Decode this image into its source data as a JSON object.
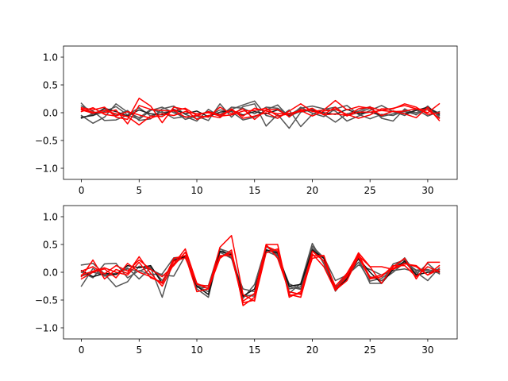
{
  "chart_data": [
    {
      "type": "line",
      "title": "",
      "xlabel": "",
      "ylabel": "",
      "xlim": [
        -1.55,
        32.55
      ],
      "ylim": [
        -1.2,
        1.2
      ],
      "xticks": [
        0,
        5,
        10,
        15,
        20,
        25,
        30
      ],
      "yticks": [
        -1.0,
        -0.5,
        0.0,
        0.5,
        1.0
      ],
      "ytick_labels": [
        "−1.0",
        "−0.5",
        "0.0",
        "0.5",
        "1.0"
      ],
      "grid": false,
      "series": [
        {
          "color": "#555555",
          "values": [
            0.17,
            -0.05,
            0.02,
            0.11,
            -0.04,
            -0.12,
            0.04,
            0.1,
            0.0,
            -0.08,
            -0.05,
            0.02,
            -0.03,
            0.06,
            0.14,
            0.21,
            -0.05,
            -0.1,
            0.05,
            -0.25,
            -0.03,
            0.06,
            0.1,
            -0.05,
            0.0,
            0.08,
            -0.07,
            -0.02,
            0.02,
            -0.03,
            0.06,
            -0.05
          ]
        },
        {
          "color": "#555555",
          "values": [
            -0.05,
            -0.19,
            -0.08,
            0.16,
            0.01,
            -0.09,
            0.06,
            0.0,
            0.03,
            -0.12,
            -0.06,
            -0.14,
            0.16,
            -0.08,
            0.11,
            0.16,
            -0.24,
            -0.03,
            -0.28,
            0.01,
            0.06,
            -0.03,
            -0.17,
            -0.02,
            0.03,
            0.11,
            -0.1,
            -0.15,
            0.07,
            -0.04,
            0.12,
            -0.08
          ]
        },
        {
          "color": "#555555",
          "values": [
            0.12,
            0.03,
            -0.14,
            -0.13,
            -0.04,
            0.09,
            -0.06,
            0.02,
            -0.1,
            -0.07,
            -0.15,
            0.06,
            -0.07,
            0.1,
            0.08,
            -0.02,
            0.1,
            0.08,
            -0.04,
            0.08,
            0.12,
            0.07,
            0.03,
            -0.15,
            -0.06,
            0.04,
            0.13,
            0.02,
            -0.05,
            0.06,
            -0.06,
            0.02
          ]
        },
        {
          "color": "#555555",
          "values": [
            -0.1,
            -0.02,
            0.07,
            -0.05,
            0.04,
            -0.14,
            -0.11,
            0.07,
            0.12,
            -0.03,
            -0.11,
            -0.06,
            0.05,
            0.02,
            -0.13,
            -0.08,
            0.05,
            0.14,
            -0.08,
            0.1,
            -0.01,
            -0.07,
            0.07,
            0.13,
            -0.03,
            -0.11,
            -0.03,
            -0.05,
            0.04,
            0.0,
            0.09,
            -0.01
          ]
        },
        {
          "color": "#222222",
          "values": [
            -0.08,
            -0.05,
            0.08,
            0.02,
            -0.06,
            0.05,
            -0.02,
            -0.04,
            0.06,
            -0.02,
            0.03,
            -0.07,
            0.01,
            0.04,
            -0.04,
            0.02,
            -0.02,
            0.05,
            -0.06,
            0.03,
            0.04,
            0.0,
            -0.03,
            0.06,
            -0.02,
            0.01,
            -0.05,
            0.03,
            -0.02,
            0.04,
            0.1,
            -0.03
          ]
        },
        {
          "color": "#ff0000",
          "values": [
            0.09,
            0.05,
            0.1,
            -0.08,
            -0.12,
            0.26,
            0.12,
            -0.18,
            0.1,
            0.06,
            -0.12,
            -0.05,
            -0.09,
            0.07,
            -0.1,
            -0.06,
            0.0,
            -0.1,
            0.03,
            0.16,
            0.02,
            0.05,
            0.22,
            0.05,
            0.11,
            0.08,
            -0.05,
            0.03,
            -0.02,
            -0.09,
            0.1,
            -0.14
          ]
        },
        {
          "color": "#ff0000",
          "values": [
            0.07,
            0.01,
            0.0,
            0.05,
            -0.2,
            0.13,
            0.06,
            0.04,
            0.03,
            0.08,
            -0.05,
            -0.08,
            0.1,
            -0.02,
            0.07,
            -0.12,
            0.05,
            0.06,
            -0.07,
            0.06,
            0.03,
            -0.03,
            0.1,
            -0.06,
            0.07,
            0.1,
            0.04,
            0.08,
            0.13,
            0.07,
            0.0,
            0.16
          ]
        },
        {
          "color": "#ff0000",
          "values": [
            0.02,
            0.09,
            -0.03,
            -0.06,
            0.02,
            -0.04,
            -0.1,
            -0.02,
            -0.05,
            0.02,
            -0.02,
            0.0,
            -0.06,
            -0.04,
            0.03,
            0.04,
            0.08,
            -0.06,
            -0.02,
            0.04,
            -0.06,
            0.03,
            0.06,
            -0.03,
            -0.1,
            -0.04,
            0.07,
            0.07,
            0.16,
            0.1,
            -0.03,
            0.0
          ]
        },
        {
          "color": "#ff0000",
          "values": [
            0.05,
            -0.01,
            0.04,
            -0.02,
            -0.07,
            -0.22,
            -0.06,
            -0.07,
            0.05,
            -0.08,
            -0.05,
            0.02,
            -0.04,
            0.05,
            -0.06,
            0.08,
            0.03,
            -0.02,
            -0.01,
            0.02,
            0.08,
            -0.04,
            -0.02,
            -0.05,
            0.01,
            0.01,
            0.04,
            0.02,
            0.03,
            0.07,
            0.05,
            -0.1
          ]
        }
      ]
    },
    {
      "type": "line",
      "title": "",
      "xlabel": "",
      "ylabel": "",
      "xlim": [
        -1.55,
        32.55
      ],
      "ylim": [
        -1.2,
        1.2
      ],
      "xticks": [
        0,
        5,
        10,
        15,
        20,
        25,
        30
      ],
      "yticks": [
        -1.0,
        -0.5,
        0.0,
        0.5,
        1.0
      ],
      "ytick_labels": [
        "−1.0",
        "−0.5",
        "0.0",
        "0.5",
        "1.0"
      ],
      "grid": false,
      "series": [
        {
          "color": "#555555",
          "values": [
            0.13,
            0.16,
            -0.03,
            -0.26,
            -0.17,
            0.11,
            0.05,
            -0.05,
            -0.07,
            0.3,
            -0.3,
            -0.45,
            0.42,
            0.35,
            -0.41,
            -0.43,
            0.38,
            0.29,
            -0.21,
            -0.3,
            0.42,
            0.2,
            -0.34,
            -0.07,
            0.18,
            -0.16,
            -0.11,
            0.05,
            0.26,
            -0.04,
            0.16,
            -0.03
          ]
        },
        {
          "color": "#555555",
          "values": [
            -0.25,
            0.07,
            -0.07,
            -0.04,
            0.08,
            -0.12,
            0.08,
            -0.45,
            0.25,
            0.28,
            -0.25,
            -0.35,
            0.36,
            0.25,
            -0.3,
            -0.35,
            0.46,
            0.36,
            -0.38,
            -0.2,
            0.52,
            0.15,
            -0.3,
            -0.02,
            0.24,
            -0.2,
            -0.2,
            0.15,
            0.22,
            0.02,
            0.03,
            0.05
          ]
        },
        {
          "color": "#555555",
          "values": [
            0.0,
            -0.1,
            0.15,
            0.16,
            -0.1,
            0.03,
            -0.04,
            -0.03,
            0.26,
            0.28,
            -0.25,
            -0.24,
            0.43,
            0.26,
            -0.47,
            -0.22,
            0.47,
            0.3,
            -0.26,
            -0.31,
            0.43,
            0.27,
            -0.15,
            -0.05,
            0.13,
            0.05,
            -0.05,
            0.03,
            0.06,
            0.0,
            -0.15,
            0.08
          ]
        },
        {
          "color": "#555555",
          "values": [
            -0.07,
            0.0,
            -0.05,
            -0.02,
            0.06,
            0.02,
            0.1,
            -0.15,
            0.15,
            0.3,
            -0.27,
            -0.28,
            0.38,
            0.3,
            -0.44,
            -0.4,
            0.41,
            0.33,
            -0.3,
            -0.26,
            0.47,
            0.26,
            -0.27,
            -0.1,
            0.27,
            -0.08,
            -0.15,
            0.0,
            0.18,
            0.04,
            0.05,
            -0.02
          ]
        },
        {
          "color": "#111111",
          "values": [
            0.03,
            -0.08,
            -0.02,
            -0.04,
            0.12,
            0.08,
            0.12,
            -0.2,
            0.22,
            0.28,
            -0.25,
            -0.4,
            0.38,
            0.32,
            -0.43,
            -0.3,
            0.4,
            0.35,
            -0.25,
            -0.22,
            0.4,
            0.25,
            -0.33,
            -0.12,
            0.25,
            0.0,
            -0.2,
            0.05,
            0.2,
            -0.05,
            0.0,
            0.02
          ]
        },
        {
          "color": "#ff0000",
          "values": [
            -0.08,
            0.22,
            -0.12,
            0.05,
            -0.02,
            0.28,
            -0.02,
            -0.25,
            0.15,
            0.42,
            -0.2,
            -0.3,
            0.45,
            0.66,
            -0.4,
            -0.52,
            0.5,
            0.5,
            -0.45,
            -0.35,
            0.33,
            0.1,
            -0.33,
            -0.05,
            0.35,
            0.1,
            -0.2,
            0.1,
            0.25,
            -0.12,
            0.18,
            0.18
          ]
        },
        {
          "color": "#ff0000",
          "values": [
            -0.12,
            0.0,
            0.06,
            -0.1,
            0.16,
            0.0,
            -0.08,
            -0.2,
            0.25,
            0.3,
            -0.35,
            -0.3,
            0.25,
            0.4,
            -0.6,
            -0.45,
            0.47,
            0.38,
            -0.4,
            -0.45,
            0.3,
            0.3,
            -0.32,
            -0.15,
            0.28,
            -0.12,
            -0.08,
            0.12,
            0.12,
            -0.08,
            0.1,
            0.0
          ]
        },
        {
          "color": "#ff0000",
          "values": [
            -0.05,
            0.02,
            0.08,
            0.0,
            -0.05,
            0.18,
            -0.1,
            -0.18,
            0.2,
            0.26,
            -0.22,
            -0.25,
            0.3,
            0.3,
            -0.55,
            -0.5,
            0.35,
            0.42,
            -0.42,
            -0.38,
            0.25,
            0.3,
            -0.3,
            -0.08,
            0.3,
            0.1,
            0.1,
            0.05,
            0.15,
            0.12,
            -0.05,
            0.12
          ]
        },
        {
          "color": "#ff0000",
          "values": [
            0.02,
            0.1,
            -0.03,
            0.12,
            0.02,
            0.22,
            0.05,
            -0.08,
            0.12,
            0.36,
            -0.2,
            -0.3,
            0.28,
            0.35,
            -0.52,
            -0.38,
            0.5,
            0.25,
            -0.35,
            -0.4,
            0.38,
            0.2,
            -0.25,
            -0.02,
            0.33,
            -0.1,
            -0.05,
            0.07,
            0.16,
            0.1,
            -0.05,
            0.05
          ]
        }
      ]
    }
  ]
}
